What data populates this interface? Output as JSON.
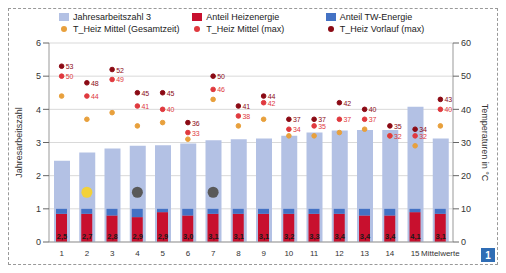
{
  "chart_data": {
    "type": "bar",
    "ylabel": "Jahresarbeitszahl",
    "y2label": "Temperaturen in °C",
    "categories": [
      "1",
      "2",
      "3",
      "4",
      "5",
      "6",
      "7",
      "8",
      "9",
      "10",
      "11",
      "12",
      "13",
      "14",
      "15",
      "Mittelwerte"
    ],
    "ylim": [
      0,
      6
    ],
    "yticks": [
      0,
      1,
      2,
      3,
      4,
      5,
      6
    ],
    "y2lim": [
      0,
      60
    ],
    "y2ticks": [
      0,
      10,
      20,
      30,
      40,
      50,
      60
    ],
    "grid": true,
    "stacked": true,
    "legend": "top",
    "badge": "1",
    "series": [
      {
        "name": "Jahresarbeitszahl 3",
        "type": "bar",
        "color": "#b3c1e4",
        "data_labels": true,
        "values": [
          2.45,
          2.7,
          2.82,
          2.9,
          2.92,
          2.97,
          3.07,
          3.1,
          3.12,
          3.2,
          3.3,
          3.36,
          3.38,
          3.38,
          4.08,
          3.12
        ],
        "value_labels": [
          "2,5",
          "2,7",
          "2,8",
          "2,9",
          "2,9",
          "3,0",
          "3,1",
          "3,1",
          "3,1",
          "3,2",
          "3,3",
          "3,4",
          "3,4",
          "3,4",
          "4,1",
          "3,1"
        ]
      },
      {
        "name": "Anteil Heizenergie",
        "type": "bar",
        "color": "#c8102e",
        "values": [
          0.85,
          0.85,
          0.8,
          0.75,
          0.9,
          0.8,
          0.85,
          0.85,
          0.85,
          0.85,
          0.85,
          0.85,
          0.8,
          0.8,
          0.9,
          0.85
        ]
      },
      {
        "name": "Anteil TW-Energie",
        "type": "bar",
        "color": "#4472c4",
        "values": [
          0.15,
          0.15,
          0.2,
          0.25,
          0.1,
          0.2,
          0.15,
          0.15,
          0.15,
          0.15,
          0.15,
          0.15,
          0.2,
          0.2,
          0.1,
          0.15
        ]
      },
      {
        "name": "T_Heiz Mittel (Gesamtzeit)",
        "type": "scatter",
        "marker": "circle",
        "axis": "y2",
        "color": "#e8a03c",
        "values": [
          44,
          37,
          39,
          35,
          36,
          31,
          43,
          35,
          37,
          32,
          32,
          33,
          34,
          32,
          29,
          35
        ]
      },
      {
        "name": "T_Heiz Mittel (max)",
        "type": "scatter",
        "marker": "circle",
        "axis": "y2",
        "color": "#e0393e",
        "data_labels": true,
        "values": [
          50,
          44,
          49,
          41,
          40,
          33,
          46,
          38,
          42,
          34,
          35,
          37,
          37,
          32,
          32,
          40
        ]
      },
      {
        "name": "T_Heiz Vorlauf (max)",
        "type": "scatter",
        "marker": "circle",
        "axis": "y2",
        "color": "#8b0a14",
        "data_labels": true,
        "values": [
          53,
          48,
          52,
          45,
          45,
          36,
          50,
          41,
          44,
          37,
          37,
          42,
          40,
          35,
          34,
          43
        ]
      }
    ],
    "annotations": [
      {
        "category": "2",
        "y": 1.5,
        "color": "#f2d13a"
      },
      {
        "category": "4",
        "y": 1.5,
        "color": "#595959"
      },
      {
        "category": "7",
        "y": 1.5,
        "color": "#595959"
      }
    ]
  }
}
